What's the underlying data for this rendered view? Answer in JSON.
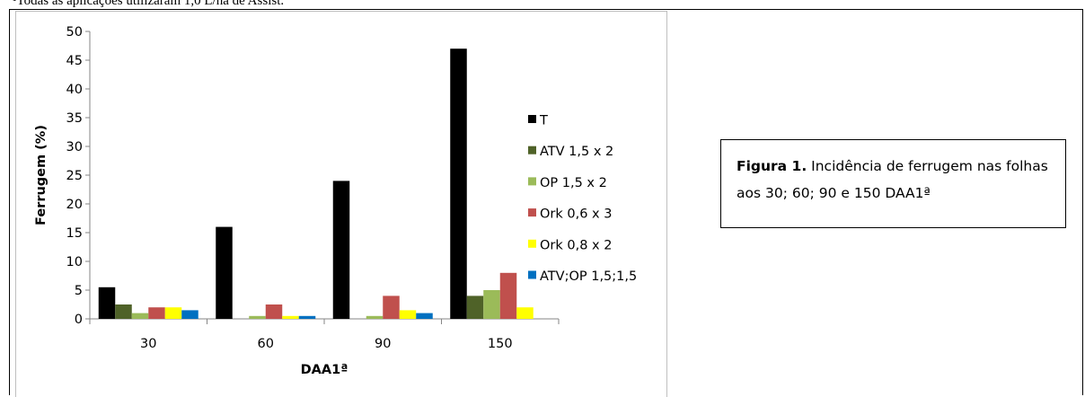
{
  "note": {
    "text": "¹Todas as aplicações utilizaram 1,0 L/ha de Assist."
  },
  "caption": {
    "label": "Figura 1.",
    "text": " Incidência de ferrugem nas folhas aos 30; 60; 90 e 150 DAA1ª"
  },
  "chart_data": {
    "type": "bar",
    "xlabel": "DAA1ª",
    "ylabel": "Ferrugem (%)",
    "ylim": [
      0,
      50
    ],
    "yticks": [
      0,
      5,
      10,
      15,
      20,
      25,
      30,
      35,
      40,
      45,
      50
    ],
    "grid": false,
    "legend_position": "right",
    "categories": [
      "30",
      "60",
      "90",
      "150"
    ],
    "series": [
      {
        "name": "T",
        "color": "#000000",
        "values": [
          5.5,
          16,
          24,
          47
        ]
      },
      {
        "name": "ATV 1,5 x 2",
        "color": "#4f6228",
        "values": [
          2.5,
          0,
          0,
          4
        ]
      },
      {
        "name": "OP 1,5 x 2",
        "color": "#9bbb59",
        "values": [
          1,
          0.5,
          0.5,
          5
        ]
      },
      {
        "name": "Ork 0,6 x 3",
        "color": "#c0504d",
        "values": [
          2,
          2.5,
          4,
          8
        ]
      },
      {
        "name": "Ork 0,8 x 2",
        "color": "#ffff00",
        "values": [
          2,
          0.5,
          1.5,
          2
        ]
      },
      {
        "name": "ATV;OP 1,5;1,5",
        "color": "#0070c0",
        "values": [
          1.5,
          0.5,
          1,
          0
        ]
      }
    ]
  }
}
